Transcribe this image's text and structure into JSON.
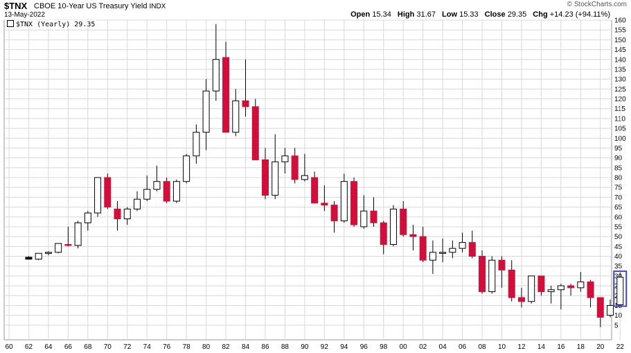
{
  "header": {
    "symbol": "$TNX",
    "description": "CBOE 10-Year US Treasury Yield",
    "exchange": "INDX",
    "date": "13-May-2022",
    "watermark": "© StockCharts.com",
    "ohlc": {
      "open_label": "Open",
      "open": "15.34",
      "high_label": "High",
      "high": "31.67",
      "low_label": "Low",
      "low": "15.33",
      "close_label": "Close",
      "close": "29.35",
      "chg_label": "Chg",
      "chg": "+14.23 (+94.11%)",
      "chg_arrow": "▲"
    }
  },
  "legend": {
    "text": "$TNX (Yearly) 29.35"
  },
  "colors": {
    "up": "#ffffff",
    "down": "#d0103a",
    "highlight": "#3c45b4",
    "grid": "#d8d8d8"
  },
  "chart_data": {
    "type": "candlestick",
    "xlim": [
      1960,
      2022
    ],
    "ylim": [
      0,
      160
    ],
    "y_ticks": [
      5,
      10,
      15,
      20,
      25,
      30,
      35,
      40,
      45,
      50,
      55,
      60,
      65,
      70,
      75,
      80,
      85,
      90,
      95,
      100,
      105,
      110,
      115,
      120,
      125,
      130,
      135,
      140,
      145,
      150,
      155,
      160
    ],
    "x_tick_labels": [
      "60",
      "62",
      "64",
      "66",
      "68",
      "70",
      "72",
      "74",
      "76",
      "78",
      "80",
      "82",
      "84",
      "86",
      "88",
      "90",
      "92",
      "94",
      "96",
      "98",
      "00",
      "02",
      "04",
      "06",
      "08",
      "10",
      "12",
      "14",
      "16",
      "18",
      "20",
      "22"
    ],
    "x_tick_years": [
      1960,
      1962,
      1964,
      1966,
      1968,
      1970,
      1972,
      1974,
      1976,
      1978,
      1980,
      1982,
      1984,
      1986,
      1988,
      1990,
      1992,
      1994,
      1996,
      1998,
      2000,
      2002,
      2004,
      2006,
      2008,
      2010,
      2012,
      2014,
      2016,
      2018,
      2020,
      2022
    ],
    "grid": true,
    "highlighted_year": 2022,
    "candles": [
      {
        "year": 1962,
        "open": 39.5,
        "high": 40,
        "low": 38.5,
        "close": 38.5
      },
      {
        "year": 1963,
        "open": 38.5,
        "high": 41.5,
        "low": 38,
        "close": 41.5
      },
      {
        "year": 1964,
        "open": 41.5,
        "high": 42.5,
        "low": 40.5,
        "close": 42
      },
      {
        "year": 1965,
        "open": 42,
        "high": 46.5,
        "low": 41.5,
        "close": 46.5
      },
      {
        "year": 1966,
        "open": 46,
        "high": 55,
        "low": 45,
        "close": 45.5
      },
      {
        "year": 1967,
        "open": 45.5,
        "high": 58,
        "low": 44,
        "close": 57
      },
      {
        "year": 1968,
        "open": 57,
        "high": 63,
        "low": 53,
        "close": 62
      },
      {
        "year": 1969,
        "open": 62,
        "high": 80,
        "low": 60,
        "close": 80
      },
      {
        "year": 1970,
        "open": 80,
        "high": 82,
        "low": 64,
        "close": 65
      },
      {
        "year": 1971,
        "open": 64,
        "high": 68,
        "low": 53,
        "close": 59
      },
      {
        "year": 1972,
        "open": 59,
        "high": 65,
        "low": 56,
        "close": 64
      },
      {
        "year": 1973,
        "open": 64,
        "high": 73,
        "low": 63,
        "close": 69
      },
      {
        "year": 1974,
        "open": 69,
        "high": 81,
        "low": 68,
        "close": 74
      },
      {
        "year": 1975,
        "open": 74,
        "high": 86,
        "low": 73,
        "close": 78
      },
      {
        "year": 1976,
        "open": 78,
        "high": 80,
        "low": 67,
        "close": 68
      },
      {
        "year": 1977,
        "open": 68,
        "high": 79,
        "low": 67,
        "close": 78
      },
      {
        "year": 1978,
        "open": 78,
        "high": 92,
        "low": 77,
        "close": 91
      },
      {
        "year": 1979,
        "open": 91,
        "high": 107,
        "low": 87,
        "close": 103
      },
      {
        "year": 1980,
        "open": 103,
        "high": 130,
        "low": 94,
        "close": 124
      },
      {
        "year": 1981,
        "open": 124,
        "high": 158,
        "low": 119,
        "close": 140
      },
      {
        "year": 1982,
        "open": 141,
        "high": 149,
        "low": 103,
        "close": 103
      },
      {
        "year": 1983,
        "open": 103,
        "high": 125,
        "low": 101,
        "close": 119
      },
      {
        "year": 1984,
        "open": 119,
        "high": 140,
        "low": 111,
        "close": 116
      },
      {
        "year": 1985,
        "open": 116,
        "high": 120,
        "low": 89,
        "close": 89
      },
      {
        "year": 1986,
        "open": 89,
        "high": 95,
        "low": 69,
        "close": 71
      },
      {
        "year": 1987,
        "open": 71,
        "high": 102,
        "low": 69,
        "close": 88
      },
      {
        "year": 1988,
        "open": 88,
        "high": 95,
        "low": 82,
        "close": 91
      },
      {
        "year": 1989,
        "open": 91,
        "high": 95,
        "low": 77,
        "close": 79
      },
      {
        "year": 1990,
        "open": 79,
        "high": 92,
        "low": 78,
        "close": 81
      },
      {
        "year": 1991,
        "open": 80,
        "high": 83,
        "low": 67,
        "close": 67
      },
      {
        "year": 1992,
        "open": 67,
        "high": 76,
        "low": 63,
        "close": 66
      },
      {
        "year": 1993,
        "open": 66,
        "high": 68,
        "low": 52,
        "close": 58
      },
      {
        "year": 1994,
        "open": 58,
        "high": 82,
        "low": 57,
        "close": 78
      },
      {
        "year": 1995,
        "open": 78,
        "high": 80,
        "low": 55,
        "close": 56
      },
      {
        "year": 1996,
        "open": 55,
        "high": 71,
        "low": 54,
        "close": 63
      },
      {
        "year": 1997,
        "open": 63,
        "high": 70,
        "low": 55,
        "close": 57
      },
      {
        "year": 1998,
        "open": 57,
        "high": 58,
        "low": 41,
        "close": 46
      },
      {
        "year": 1999,
        "open": 46,
        "high": 66,
        "low": 45,
        "close": 64
      },
      {
        "year": 2000,
        "open": 64,
        "high": 68,
        "low": 50,
        "close": 51
      },
      {
        "year": 2001,
        "open": 51,
        "high": 56,
        "low": 43,
        "close": 50
      },
      {
        "year": 2002,
        "open": 50,
        "high": 55,
        "low": 37,
        "close": 38
      },
      {
        "year": 2003,
        "open": 38,
        "high": 48,
        "low": 31,
        "close": 42
      },
      {
        "year": 2004,
        "open": 42,
        "high": 49,
        "low": 37,
        "close": 42
      },
      {
        "year": 2005,
        "open": 42,
        "high": 48,
        "low": 39,
        "close": 44
      },
      {
        "year": 2006,
        "open": 44,
        "high": 52,
        "low": 42,
        "close": 47
      },
      {
        "year": 2007,
        "open": 47,
        "high": 53,
        "low": 39,
        "close": 40
      },
      {
        "year": 2008,
        "open": 40,
        "high": 43,
        "low": 21,
        "close": 22
      },
      {
        "year": 2009,
        "open": 22,
        "high": 40,
        "low": 21,
        "close": 38
      },
      {
        "year": 2010,
        "open": 38,
        "high": 40,
        "low": 24,
        "close": 33
      },
      {
        "year": 2011,
        "open": 33,
        "high": 38,
        "low": 17,
        "close": 19
      },
      {
        "year": 2012,
        "open": 19,
        "high": 24,
        "low": 14,
        "close": 17
      },
      {
        "year": 2013,
        "open": 17,
        "high": 30,
        "low": 16,
        "close": 30
      },
      {
        "year": 2014,
        "open": 30,
        "high": 30,
        "low": 20,
        "close": 22
      },
      {
        "year": 2015,
        "open": 22,
        "high": 25,
        "low": 16,
        "close": 23
      },
      {
        "year": 2016,
        "open": 23,
        "high": 26,
        "low": 13,
        "close": 25
      },
      {
        "year": 2017,
        "open": 25,
        "high": 26,
        "low": 20,
        "close": 24
      },
      {
        "year": 2018,
        "open": 24,
        "high": 32,
        "low": 22,
        "close": 27
      },
      {
        "year": 2019,
        "open": 27,
        "high": 28,
        "low": 14,
        "close": 19
      },
      {
        "year": 2020,
        "open": 19,
        "high": 19,
        "low": 4,
        "close": 9
      },
      {
        "year": 2021,
        "open": 10,
        "high": 18,
        "low": 9,
        "close": 15
      },
      {
        "year": 2022,
        "open": 15.34,
        "high": 31.67,
        "low": 15.33,
        "close": 29.35
      }
    ]
  }
}
